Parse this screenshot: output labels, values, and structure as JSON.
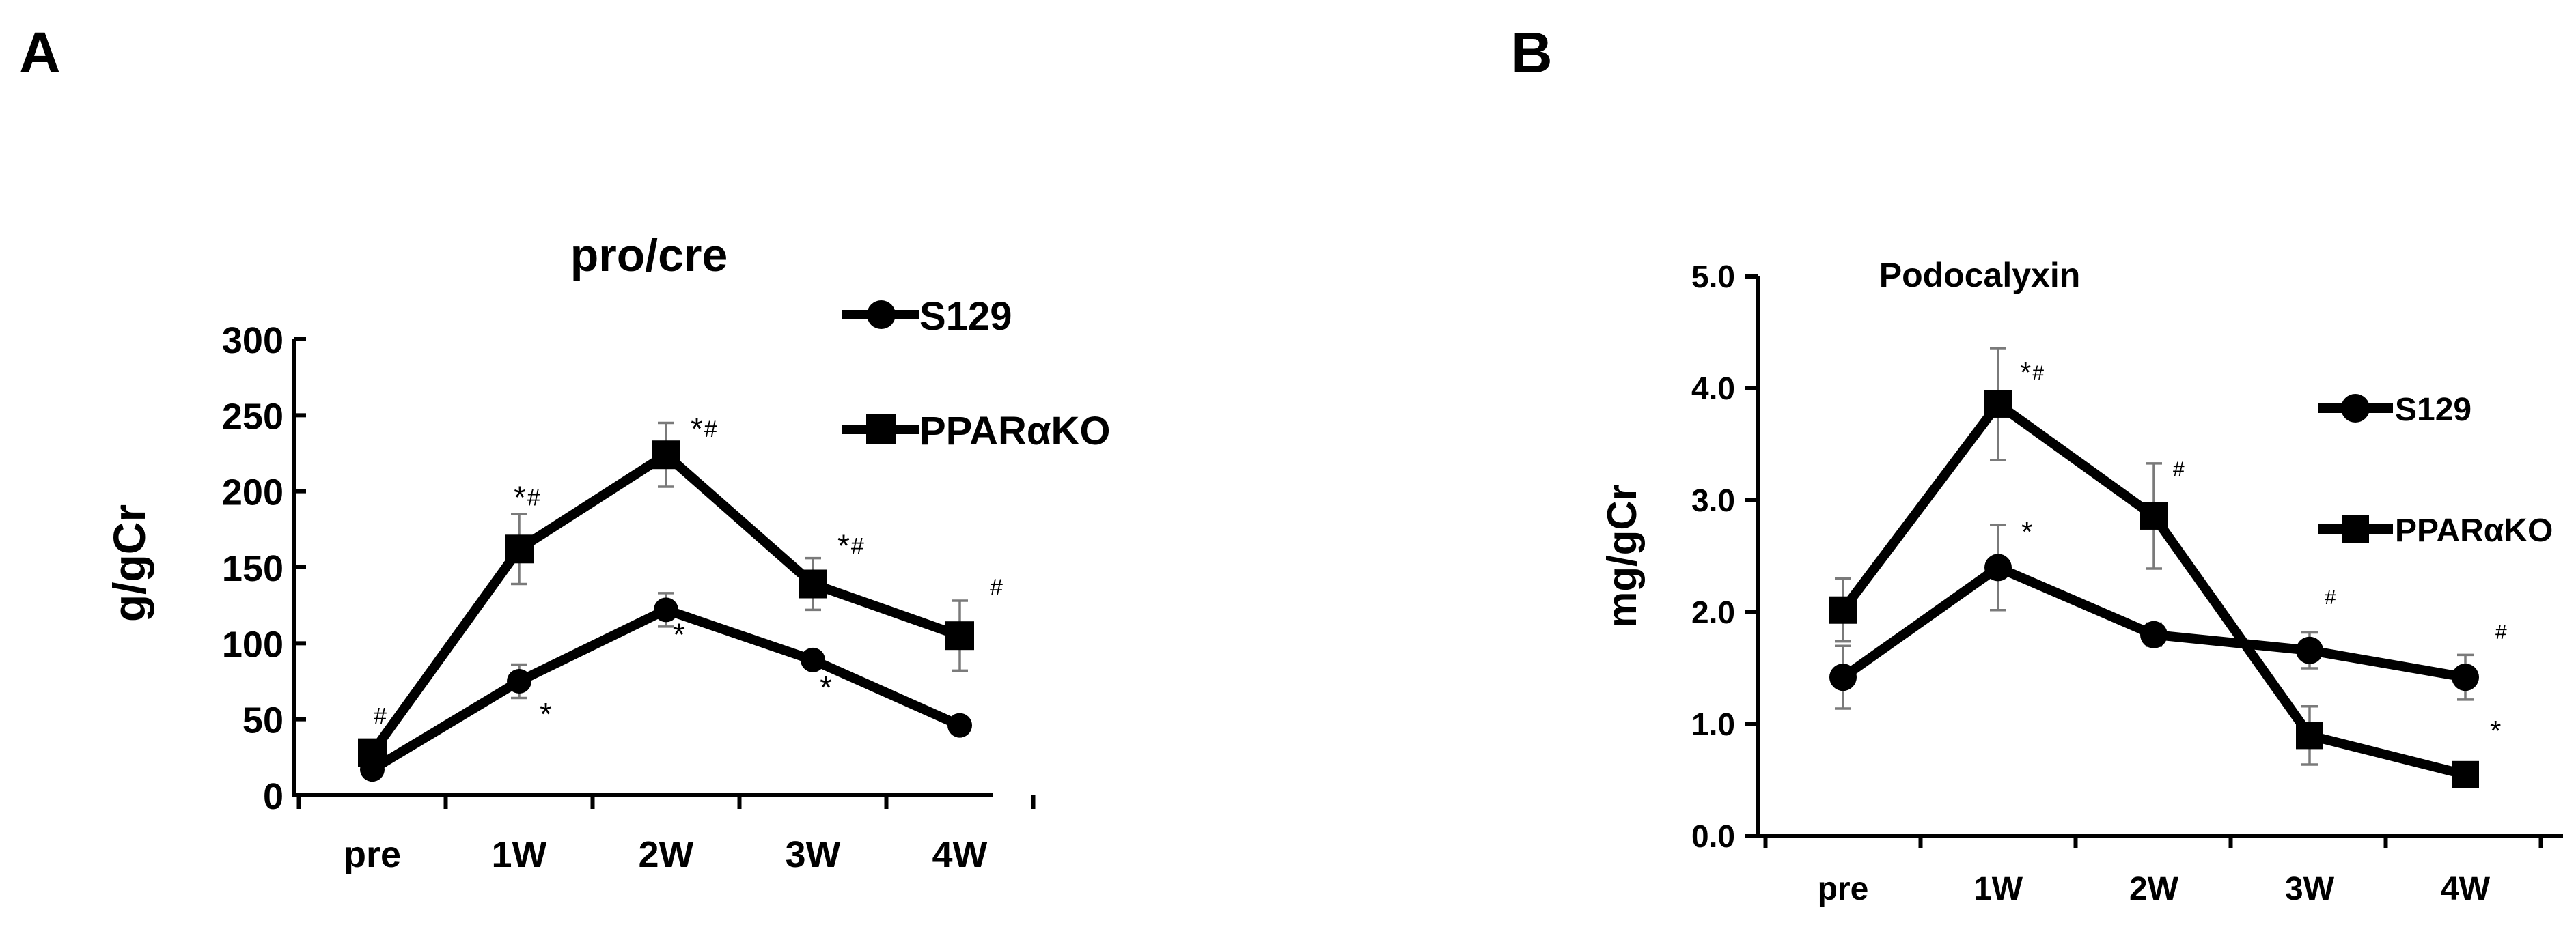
{
  "panels": [
    {
      "letter": "A",
      "chart_data": {
        "type": "line",
        "title": "pro/cre",
        "xlabel": "",
        "ylabel": "g/gCr",
        "categories": [
          "pre",
          "1W",
          "2W",
          "3W",
          "4W"
        ],
        "ylim": [
          0,
          300
        ],
        "yticks": [
          0,
          50,
          100,
          150,
          200,
          250,
          300
        ],
        "ytick_labels": [
          "0",
          "50",
          "100",
          "150",
          "200",
          "250",
          "300"
        ],
        "legend_position": "top-right",
        "series": [
          {
            "name": "S129",
            "marker": "circle",
            "values": [
              17,
              75,
              122,
              89,
              46
            ],
            "errors": [
              3,
              11,
              11,
              5,
              3
            ],
            "annotations": [
              "",
              "*",
              "*",
              "*",
              ""
            ]
          },
          {
            "name": "PPARαKO",
            "marker": "square",
            "values": [
              28,
              162,
              224,
              139,
              105
            ],
            "errors": [
              6,
              23,
              21,
              17,
              23
            ],
            "annotations": [
              "#",
              "*#",
              "*#",
              "*#",
              "#"
            ]
          }
        ]
      }
    },
    {
      "letter": "B",
      "chart_data": {
        "type": "line",
        "title": "Podocalyxin",
        "xlabel": "",
        "ylabel": "mg/gCr",
        "categories": [
          "pre",
          "1W",
          "2W",
          "3W",
          "4W"
        ],
        "ylim": [
          0,
          5
        ],
        "yticks": [
          0,
          1,
          2,
          3,
          4,
          5
        ],
        "ytick_labels": [
          "0.0",
          "1.0",
          "2.0",
          "3.0",
          "4.0",
          "5.0"
        ],
        "legend_position": "right",
        "series": [
          {
            "name": "S129",
            "marker": "circle",
            "values": [
              1.42,
              2.4,
              1.8,
              1.66,
              1.42
            ],
            "errors": [
              0.28,
              0.38,
              0.1,
              0.16,
              0.2
            ],
            "annotations": [
              "",
              "*",
              "",
              "#",
              "#"
            ]
          },
          {
            "name": "PPARαKO",
            "marker": "square",
            "values": [
              2.02,
              3.86,
              2.86,
              0.9,
              0.55
            ],
            "errors": [
              0.28,
              0.5,
              0.47,
              0.26,
              0.05
            ],
            "annotations": [
              "",
              "*#",
              "#",
              "",
              "*"
            ]
          }
        ]
      }
    }
  ]
}
